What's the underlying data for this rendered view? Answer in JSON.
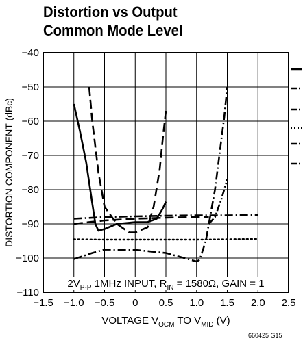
{
  "figure_code": "660425 G15",
  "chart_data": {
    "type": "line",
    "title": [
      "Distortion vs Output",
      "Common Mode Level"
    ],
    "xlabel": {
      "base": "VOLTAGE V",
      "sub1": "OCM",
      "mid": " TO V",
      "sub2": "MID",
      "unit": " (V)"
    },
    "ylabel": "DISTORTION COMPONENT (dBc)",
    "xlim": [
      -1.5,
      2.5
    ],
    "ylim": [
      -110,
      -40
    ],
    "xticks": [
      -1.5,
      -1.0,
      -0.5,
      0,
      0.5,
      1.0,
      1.5,
      2.0,
      2.5
    ],
    "xtick_labels": [
      "−1.5",
      "−1.0",
      "−0.5",
      "0",
      "0.5",
      "1.0",
      "1.5",
      "2.0",
      "2.5"
    ],
    "yticks": [
      -110,
      -100,
      -90,
      -80,
      -70,
      -60,
      -50,
      -40
    ],
    "ytick_labels": [
      "−110",
      "−100",
      "−90",
      "−80",
      "−70",
      "−60",
      "−50",
      "−40"
    ],
    "grid": true,
    "annotation": {
      "p1": "2V",
      "s1": "P-P",
      "p2": " 1MHz INPUT, R",
      "s2": "IN",
      "p3": " = 1580Ω, GAIN = 1"
    },
    "legend_keys": [
      {
        "style": "solid"
      },
      {
        "style": "dash"
      },
      {
        "style": "dashdot"
      },
      {
        "style": "dot"
      },
      {
        "style": "dashdot"
      },
      {
        "style": "dash"
      }
    ],
    "series": [
      {
        "style": "solid",
        "color": "#000000",
        "x": [
          -1.0,
          -0.9,
          -0.8,
          -0.7,
          -0.65,
          -0.6,
          -0.5,
          -0.3,
          0,
          0.2,
          0.35,
          0.45,
          0.5
        ],
        "y": [
          -55,
          -63,
          -72,
          -84,
          -90,
          -92,
          -91.5,
          -90,
          -89.5,
          -89.5,
          -88.5,
          -85.5,
          -83.5
        ]
      },
      {
        "style": "dash",
        "color": "#000000",
        "x": [
          -0.75,
          -0.7,
          -0.6,
          -0.5,
          -0.3,
          -0.1,
          0,
          0.2,
          0.3,
          0.4,
          0.45,
          0.5
        ],
        "y": [
          -50,
          -60,
          -75,
          -85,
          -90,
          -92.5,
          -92.5,
          -91,
          -85,
          -74,
          -65,
          -57
        ]
      },
      {
        "style": "dashdot",
        "color": "#000000",
        "x": [
          -1.0,
          -0.5,
          0,
          0.5,
          1.0,
          1.5,
          2.0
        ],
        "y": [
          -88.5,
          -88,
          -87.8,
          -87.6,
          -87.5,
          -87.5,
          -87.4
        ]
      },
      {
        "style": "dash",
        "color": "#000000",
        "x": [
          -1.0,
          -0.5,
          0,
          0.5,
          1.0,
          1.2
        ],
        "y": [
          -90,
          -89,
          -88.5,
          -88.2,
          -88,
          -88
        ]
      },
      {
        "style": "dot",
        "color": "#000000",
        "x": [
          -1.0,
          -0.5,
          0,
          0.5,
          1.0,
          1.5,
          2.0
        ],
        "y": [
          -94.5,
          -94.6,
          -94.6,
          -94.6,
          -94.6,
          -94.5,
          -94.4
        ]
      },
      {
        "style": "dashdot",
        "color": "#000000",
        "x": [
          -1.0,
          -0.7,
          -0.5,
          0,
          0.5,
          0.8,
          1.0,
          1.05,
          1.15,
          1.3,
          1.45,
          1.5
        ],
        "y": [
          -100.3,
          -98.5,
          -97.5,
          -97.6,
          -98.5,
          -100,
          -101,
          -100.5,
          -95,
          -80,
          -59,
          -50
        ]
      },
      {
        "style": "dashdotdot",
        "color": "#000000",
        "x": [
          1.2,
          1.3,
          1.4,
          1.5
        ],
        "y": [
          -90,
          -88,
          -83,
          -77
        ]
      }
    ]
  }
}
